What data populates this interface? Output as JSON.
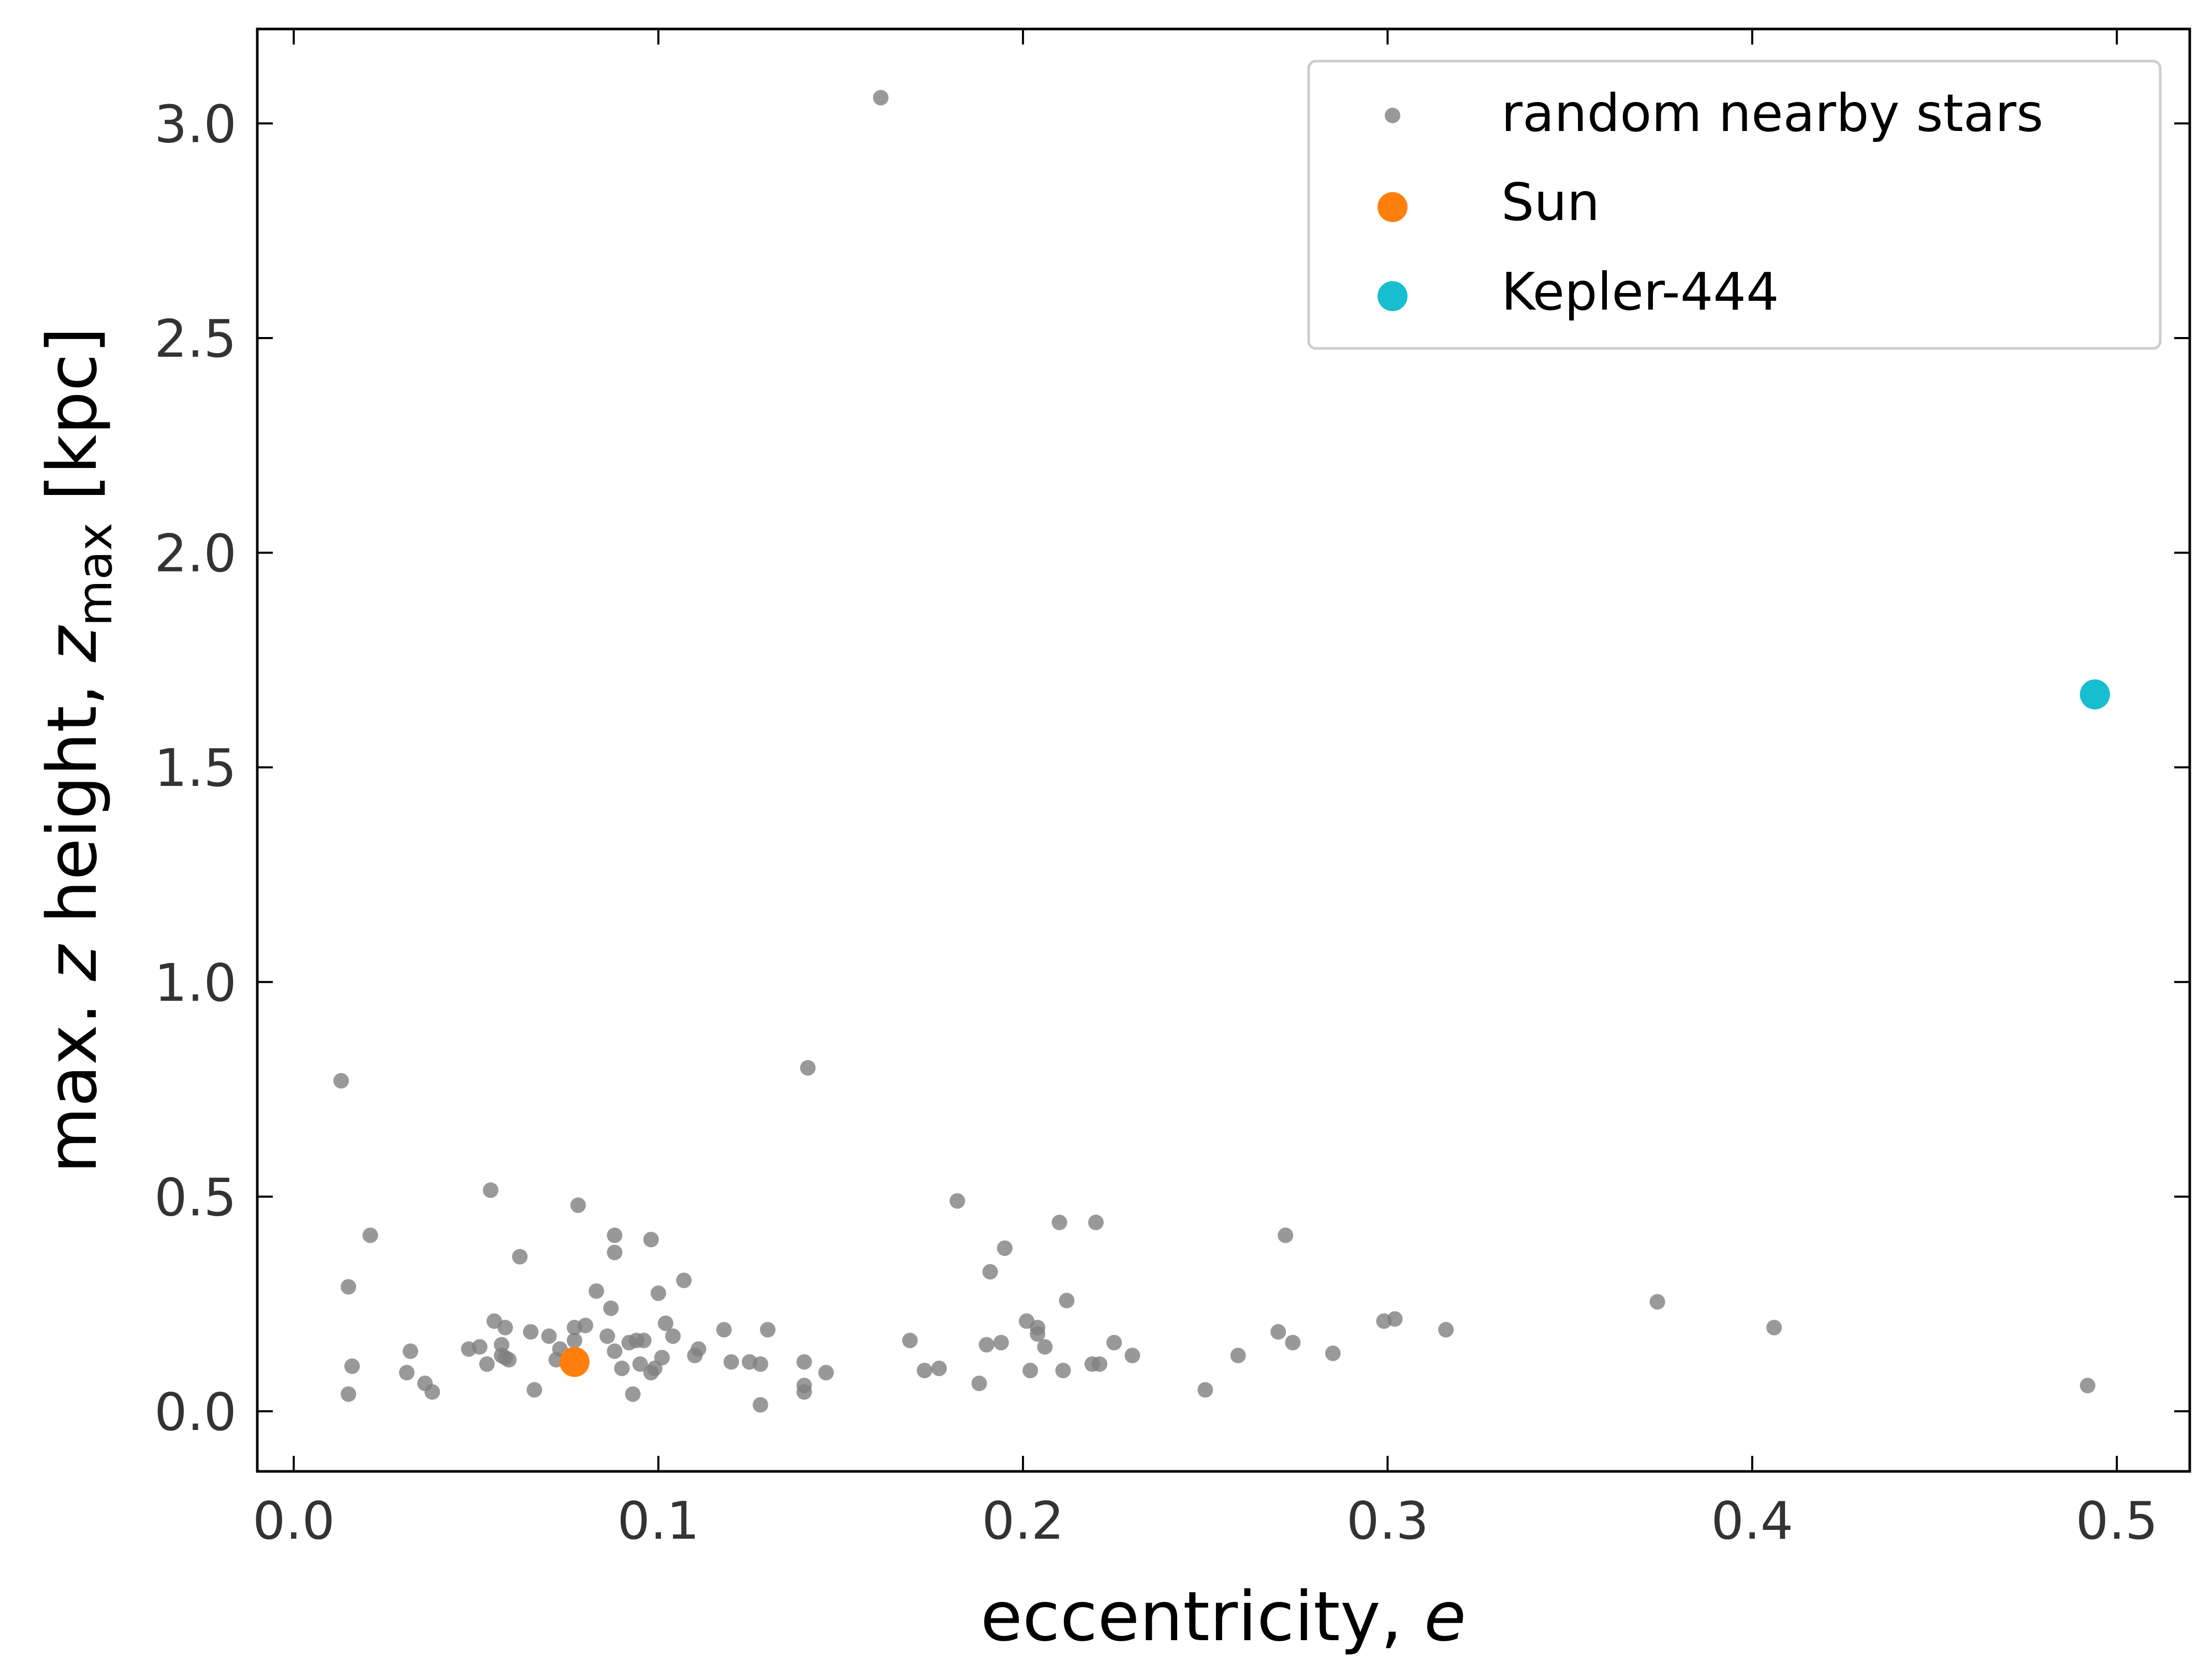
{
  "chart_data": {
    "type": "scatter",
    "xlabel": "eccentricity, e",
    "ylabel": "max. z height, z_max [kpc]",
    "xlim": [
      -0.01,
      0.52
    ],
    "ylim": [
      -0.14,
      3.22
    ],
    "xticks": [
      0.0,
      0.1,
      0.2,
      0.3,
      0.4,
      0.5
    ],
    "yticks": [
      0.0,
      0.5,
      1.0,
      1.5,
      2.0,
      2.5,
      3.0
    ],
    "xtick_labels": [
      "0.0",
      "0.1",
      "0.2",
      "0.3",
      "0.4",
      "0.5"
    ],
    "ytick_labels": [
      "0.0",
      "0.5",
      "1.0",
      "1.5",
      "2.0",
      "2.5",
      "3.0"
    ],
    "legend_position": "top-right",
    "grid": false,
    "series": [
      {
        "name": "random nearby stars",
        "color": "#7f7f7f",
        "points": [
          [
            0.161,
            3.06
          ],
          [
            0.013,
            0.77
          ],
          [
            0.141,
            0.8
          ],
          [
            0.054,
            0.515
          ],
          [
            0.078,
            0.48
          ],
          [
            0.182,
            0.49
          ],
          [
            0.021,
            0.41
          ],
          [
            0.088,
            0.41
          ],
          [
            0.098,
            0.4
          ],
          [
            0.088,
            0.37
          ],
          [
            0.062,
            0.36
          ],
          [
            0.195,
            0.38
          ],
          [
            0.21,
            0.44
          ],
          [
            0.22,
            0.44
          ],
          [
            0.272,
            0.41
          ],
          [
            0.015,
            0.29
          ],
          [
            0.083,
            0.28
          ],
          [
            0.1,
            0.275
          ],
          [
            0.107,
            0.305
          ],
          [
            0.191,
            0.325
          ],
          [
            0.212,
            0.258
          ],
          [
            0.374,
            0.255
          ],
          [
            0.087,
            0.24
          ],
          [
            0.055,
            0.21
          ],
          [
            0.058,
            0.195
          ],
          [
            0.077,
            0.195
          ],
          [
            0.08,
            0.2
          ],
          [
            0.102,
            0.205
          ],
          [
            0.065,
            0.185
          ],
          [
            0.07,
            0.175
          ],
          [
            0.086,
            0.175
          ],
          [
            0.094,
            0.165
          ],
          [
            0.096,
            0.165
          ],
          [
            0.104,
            0.175
          ],
          [
            0.118,
            0.19
          ],
          [
            0.13,
            0.19
          ],
          [
            0.048,
            0.145
          ],
          [
            0.051,
            0.15
          ],
          [
            0.057,
            0.155
          ],
          [
            0.073,
            0.145
          ],
          [
            0.077,
            0.165
          ],
          [
            0.092,
            0.16
          ],
          [
            0.088,
            0.14
          ],
          [
            0.057,
            0.13
          ],
          [
            0.058,
            0.125
          ],
          [
            0.059,
            0.12
          ],
          [
            0.032,
            0.14
          ],
          [
            0.053,
            0.11
          ],
          [
            0.072,
            0.12
          ],
          [
            0.076,
            0.13
          ],
          [
            0.101,
            0.125
          ],
          [
            0.11,
            0.13
          ],
          [
            0.111,
            0.145
          ],
          [
            0.09,
            0.1
          ],
          [
            0.095,
            0.11
          ],
          [
            0.098,
            0.09
          ],
          [
            0.099,
            0.1
          ],
          [
            0.016,
            0.105
          ],
          [
            0.031,
            0.09
          ],
          [
            0.036,
            0.065
          ],
          [
            0.038,
            0.045
          ],
          [
            0.015,
            0.04
          ],
          [
            0.066,
            0.05
          ],
          [
            0.093,
            0.04
          ],
          [
            0.12,
            0.115
          ],
          [
            0.125,
            0.115
          ],
          [
            0.128,
            0.11
          ],
          [
            0.14,
            0.115
          ],
          [
            0.146,
            0.09
          ],
          [
            0.14,
            0.06
          ],
          [
            0.14,
            0.045
          ],
          [
            0.128,
            0.015
          ],
          [
            0.169,
            0.165
          ],
          [
            0.173,
            0.095
          ],
          [
            0.177,
            0.1
          ],
          [
            0.188,
            0.065
          ],
          [
            0.19,
            0.155
          ],
          [
            0.194,
            0.16
          ],
          [
            0.201,
            0.21
          ],
          [
            0.204,
            0.18
          ],
          [
            0.204,
            0.195
          ],
          [
            0.206,
            0.15
          ],
          [
            0.202,
            0.095
          ],
          [
            0.211,
            0.095
          ],
          [
            0.219,
            0.11
          ],
          [
            0.221,
            0.11
          ],
          [
            0.225,
            0.16
          ],
          [
            0.23,
            0.13
          ],
          [
            0.25,
            0.05
          ],
          [
            0.259,
            0.13
          ],
          [
            0.27,
            0.185
          ],
          [
            0.274,
            0.16
          ],
          [
            0.285,
            0.135
          ],
          [
            0.299,
            0.21
          ],
          [
            0.302,
            0.215
          ],
          [
            0.316,
            0.19
          ],
          [
            0.406,
            0.195
          ],
          [
            0.492,
            0.06
          ]
        ]
      },
      {
        "name": "Sun",
        "color": "#ff7f0e",
        "points": [
          [
            0.077,
            0.115
          ]
        ]
      },
      {
        "name": "Kepler-444",
        "color": "#17becf",
        "points": [
          [
            0.494,
            1.67
          ]
        ]
      }
    ]
  }
}
